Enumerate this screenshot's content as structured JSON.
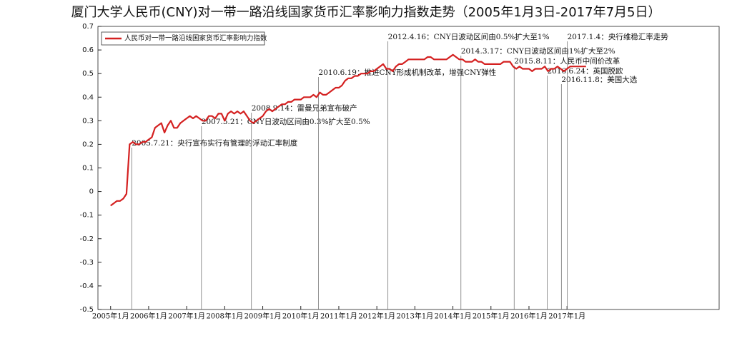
{
  "chart_data": {
    "type": "line",
    "title": "厦门大学人民币(CNY)对一带一路沿线国家货币汇率影响力指数走势（2005年1月3日-2017年7月5日）",
    "x": [
      "2005-01",
      "2005-02",
      "2005-03",
      "2005-04",
      "2005-05",
      "2005-06",
      "2005-07",
      "2005-08",
      "2005-09",
      "2005-10",
      "2005-11",
      "2005-12",
      "2006-01",
      "2006-02",
      "2006-03",
      "2006-04",
      "2006-05",
      "2006-06",
      "2006-07",
      "2006-08",
      "2006-09",
      "2006-10",
      "2006-11",
      "2006-12",
      "2007-01",
      "2007-02",
      "2007-03",
      "2007-04",
      "2007-05",
      "2007-06",
      "2007-07",
      "2007-08",
      "2007-09",
      "2007-10",
      "2007-11",
      "2007-12",
      "2008-01",
      "2008-02",
      "2008-03",
      "2008-04",
      "2008-05",
      "2008-06",
      "2008-07",
      "2008-08",
      "2008-09",
      "2008-10",
      "2008-11",
      "2008-12",
      "2009-01",
      "2009-02",
      "2009-03",
      "2009-04",
      "2009-05",
      "2009-06",
      "2009-07",
      "2009-08",
      "2009-09",
      "2009-10",
      "2009-11",
      "2009-12",
      "2010-01",
      "2010-02",
      "2010-03",
      "2010-04",
      "2010-05",
      "2010-06",
      "2010-07",
      "2010-08",
      "2010-09",
      "2010-10",
      "2010-11",
      "2010-12",
      "2011-01",
      "2011-02",
      "2011-03",
      "2011-04",
      "2011-05",
      "2011-06",
      "2011-07",
      "2011-08",
      "2011-09",
      "2011-10",
      "2011-11",
      "2011-12",
      "2012-01",
      "2012-02",
      "2012-03",
      "2012-04",
      "2012-05",
      "2012-06",
      "2012-07",
      "2012-08",
      "2012-09",
      "2012-10",
      "2012-11",
      "2012-12",
      "2013-01",
      "2013-02",
      "2013-03",
      "2013-04",
      "2013-05",
      "2013-06",
      "2013-07",
      "2013-08",
      "2013-09",
      "2013-10",
      "2013-11",
      "2013-12",
      "2014-01",
      "2014-02",
      "2014-03",
      "2014-04",
      "2014-05",
      "2014-06",
      "2014-07",
      "2014-08",
      "2014-09",
      "2014-10",
      "2014-11",
      "2014-12",
      "2015-01",
      "2015-02",
      "2015-03",
      "2015-04",
      "2015-05",
      "2015-06",
      "2015-07",
      "2015-08",
      "2015-09",
      "2015-10",
      "2015-11",
      "2015-12",
      "2016-01",
      "2016-02",
      "2016-03",
      "2016-04",
      "2016-05",
      "2016-06",
      "2016-07",
      "2016-08",
      "2016-09",
      "2016-10",
      "2016-11",
      "2016-12",
      "2017-01",
      "2017-02",
      "2017-03",
      "2017-04",
      "2017-05",
      "2017-06",
      "2017-07"
    ],
    "series": [
      {
        "name": "人民币对一带一路沿线国家货币汇率影响力指数",
        "color": "#d42020",
        "values": [
          -0.06,
          -0.05,
          -0.04,
          -0.04,
          -0.03,
          -0.01,
          0.2,
          0.21,
          0.2,
          0.2,
          0.21,
          0.21,
          0.22,
          0.23,
          0.27,
          0.28,
          0.29,
          0.25,
          0.28,
          0.3,
          0.27,
          0.27,
          0.29,
          0.3,
          0.31,
          0.32,
          0.31,
          0.32,
          0.31,
          0.3,
          0.3,
          0.32,
          0.32,
          0.31,
          0.33,
          0.33,
          0.3,
          0.33,
          0.34,
          0.33,
          0.34,
          0.33,
          0.34,
          0.32,
          0.3,
          0.29,
          0.3,
          0.31,
          0.32,
          0.34,
          0.35,
          0.34,
          0.35,
          0.36,
          0.37,
          0.37,
          0.38,
          0.38,
          0.39,
          0.39,
          0.39,
          0.4,
          0.4,
          0.4,
          0.41,
          0.4,
          0.42,
          0.41,
          0.41,
          0.42,
          0.43,
          0.44,
          0.44,
          0.45,
          0.47,
          0.48,
          0.48,
          0.49,
          0.49,
          0.5,
          0.5,
          0.5,
          0.51,
          0.51,
          0.52,
          0.53,
          0.54,
          0.52,
          0.52,
          0.51,
          0.53,
          0.54,
          0.54,
          0.55,
          0.56,
          0.56,
          0.56,
          0.56,
          0.56,
          0.56,
          0.57,
          0.57,
          0.56,
          0.56,
          0.56,
          0.56,
          0.56,
          0.57,
          0.58,
          0.57,
          0.56,
          0.56,
          0.55,
          0.55,
          0.55,
          0.56,
          0.55,
          0.55,
          0.54,
          0.54,
          0.54,
          0.54,
          0.54,
          0.54,
          0.55,
          0.55,
          0.55,
          0.53,
          0.52,
          0.53,
          0.52,
          0.52,
          0.52,
          0.51,
          0.52,
          0.52,
          0.52,
          0.53,
          0.51,
          0.52,
          0.52,
          0.53,
          0.52,
          0.51,
          0.52,
          0.53,
          0.53,
          0.53,
          0.53,
          0.53,
          0.53
        ]
      }
    ],
    "xlim": [
      "2004-09",
      "2021-01"
    ],
    "xticks": [
      {
        "value": "2005-01",
        "label": "2005年1月"
      },
      {
        "value": "2006-01",
        "label": "2006年1月"
      },
      {
        "value": "2007-01",
        "label": "2007年1月"
      },
      {
        "value": "2008-01",
        "label": "2008年1月"
      },
      {
        "value": "2009-01",
        "label": "2009年1月"
      },
      {
        "value": "2010-01",
        "label": "2010年1月"
      },
      {
        "value": "2011-01",
        "label": "2011年1月"
      },
      {
        "value": "2012-01",
        "label": "2012年1月"
      },
      {
        "value": "2013-01",
        "label": "2013年1月"
      },
      {
        "value": "2014-01",
        "label": "2014年1月"
      },
      {
        "value": "2015-01",
        "label": "2015年1月"
      },
      {
        "value": "2016-01",
        "label": "2016年1月"
      },
      {
        "value": "2017-01",
        "label": "2017年1月"
      }
    ],
    "ylim": [
      -0.5,
      0.7
    ],
    "yticks": [
      -0.5,
      -0.4,
      -0.3,
      -0.2,
      -0.1,
      0,
      0.1,
      0.2,
      0.3,
      0.4,
      0.5,
      0.6,
      0.7
    ],
    "legend": "upper left",
    "annotations": [
      {
        "x": "2005-07-21",
        "text": "2005.7.21：央行宣布实行有管理的浮动汇率制度"
      },
      {
        "x": "2007-05-21",
        "text": "2007.5.21：CNY日波动区间由0.3%扩大至0.5%"
      },
      {
        "x": "2008-09-14",
        "text": "2008.9.14：雷曼兄弟宣布破产"
      },
      {
        "x": "2010-06-19",
        "text": "2010.6.19：推进CNY形成机制改革，增强CNY弹性"
      },
      {
        "x": "2012-04-16",
        "text": "2012.4.16：CNY日波动区间由0.5%扩大至1%"
      },
      {
        "x": "2014-03-17",
        "text": "2014.3.17：CNY日波动区间由1%扩大至2%"
      },
      {
        "x": "2015-08-11",
        "text": "2015.8.11：人民币中间价改革"
      },
      {
        "x": "2016-06-24",
        "text": "2016.6.24：英国脱欧"
      },
      {
        "x": "2016-11-08",
        "text": "2016.11.8：美国大选"
      },
      {
        "x": "2017-01-04",
        "text": "2017.1.4：央行维稳汇率走势"
      }
    ]
  }
}
